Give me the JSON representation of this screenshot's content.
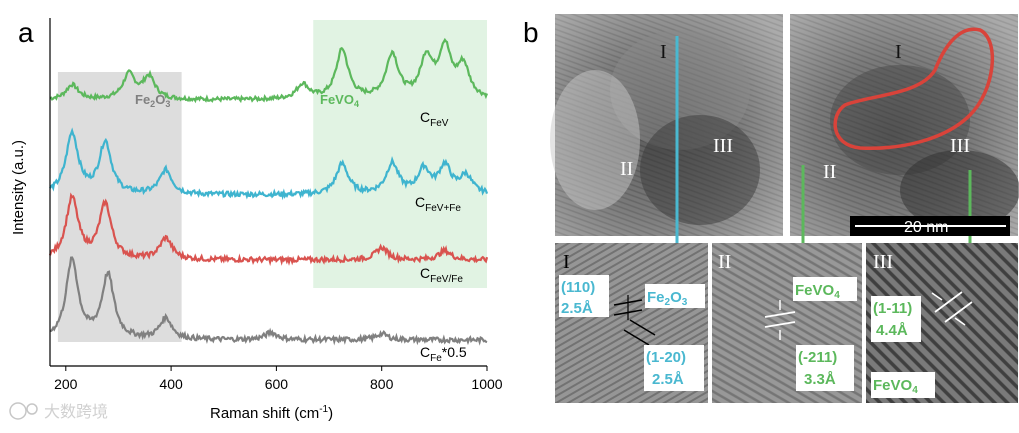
{
  "panel_a": {
    "label": "a",
    "region_labels": {
      "fe2o3": "Fe2O3",
      "fevo4": "FeVO4"
    },
    "chart_data": {
      "type": "line",
      "title": "",
      "xlabel": "Raman shift (cm-1)",
      "ylabel": "Intensity (a.u.)",
      "xlim": [
        170,
        1000
      ],
      "xticks": [
        "200",
        "400",
        "600",
        "800",
        "1000"
      ],
      "shaded_regions": [
        {
          "label": "Fe2O3",
          "x": [
            185,
            420
          ],
          "color": "#d9d9d9"
        },
        {
          "label": "FeVO4",
          "x": [
            670,
            1000
          ],
          "color": "#dff2e2"
        }
      ],
      "series": [
        {
          "name": "CFeV",
          "sub": "FeV",
          "suffix": "",
          "color": "#5cb85c",
          "offset": 3.0,
          "peaks": [
            [
              212,
              0.3
            ],
            [
              320,
              0.5
            ],
            [
              358,
              0.45
            ],
            [
              650,
              0.3
            ],
            [
              725,
              1.0
            ],
            [
              820,
              0.9
            ],
            [
              885,
              0.8
            ],
            [
              920,
              1.0
            ],
            [
              955,
              0.65
            ]
          ]
        },
        {
          "name": "CFeV+Fe",
          "sub": "FeV+Fe",
          "suffix": "",
          "color": "#3fb4cf",
          "offset": 2.0,
          "peaks": [
            [
              212,
              1.0
            ],
            [
              275,
              0.85
            ],
            [
              390,
              0.4
            ],
            [
              725,
              0.5
            ],
            [
              820,
              0.5
            ],
            [
              880,
              0.4
            ],
            [
              920,
              0.45
            ],
            [
              960,
              0.3
            ]
          ]
        },
        {
          "name": "CFeV/Fe",
          "sub": "FeV/Fe",
          "suffix": "",
          "color": "#d9534f",
          "offset": 1.2,
          "peaks": [
            [
              212,
              1.0
            ],
            [
              275,
              0.9
            ],
            [
              390,
              0.35
            ],
            [
              800,
              0.2
            ],
            [
              920,
              0.15
            ]
          ]
        },
        {
          "name": "CFe*0.5",
          "sub": "Fe",
          "suffix": "*0.5",
          "color": "#808080",
          "offset": 0.0,
          "peaks": [
            [
              212,
              1.3
            ],
            [
              280,
              1.05
            ],
            [
              390,
              0.35
            ],
            [
              590,
              0.12
            ],
            [
              800,
              0.1
            ]
          ]
        }
      ]
    }
  },
  "panel_b": {
    "label": "b",
    "tem_labels": {
      "region1": "I",
      "region2": "II",
      "region3": "III"
    },
    "scale_bar": "20 nm",
    "insets": {
      "inset1": {
        "roman": "I",
        "d1_index": "(110)",
        "d1_value": "2.5Å",
        "phase": "Fe2O3",
        "d2_index": "(1-20)",
        "d2_value": "2.5Å"
      },
      "inset2": {
        "roman": "II",
        "phase": "FeVO4",
        "d_index": "(-211)",
        "d_value": "3.3Å"
      },
      "inset3": {
        "roman": "III",
        "d_index": "(1-11)",
        "d_value": "4.4Å",
        "phase": "FeVO4"
      }
    },
    "colors": {
      "cyan": "#4ab8d0",
      "green": "#5cb85c",
      "red": "#d9433a"
    }
  },
  "watermark": "大数跨境"
}
